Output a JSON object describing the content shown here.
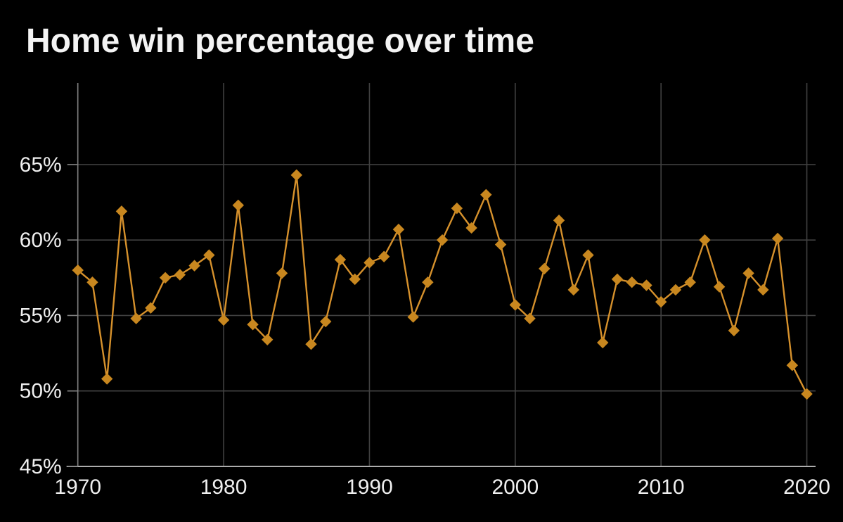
{
  "page": {
    "background": "#000000"
  },
  "chart": {
    "title": "Home win percentage over time"
  },
  "chart_data": {
    "type": "line",
    "title": "Home win percentage over time",
    "series_name": "Home win percentage",
    "x": [
      1970,
      1971,
      1972,
      1973,
      1974,
      1975,
      1976,
      1977,
      1978,
      1979,
      1980,
      1981,
      1982,
      1983,
      1984,
      1985,
      1986,
      1987,
      1988,
      1989,
      1990,
      1991,
      1992,
      1993,
      1994,
      1995,
      1996,
      1997,
      1998,
      1999,
      2000,
      2001,
      2002,
      2003,
      2004,
      2005,
      2006,
      2007,
      2008,
      2009,
      2010,
      2011,
      2012,
      2013,
      2014,
      2015,
      2016,
      2017,
      2018,
      2019,
      2020
    ],
    "values": [
      58.0,
      57.2,
      50.8,
      61.9,
      54.8,
      55.5,
      57.5,
      57.7,
      58.3,
      59.0,
      54.7,
      62.3,
      54.4,
      53.4,
      57.8,
      64.3,
      53.1,
      54.6,
      58.7,
      57.4,
      58.5,
      58.9,
      60.7,
      54.9,
      57.2,
      60.0,
      62.1,
      60.8,
      63.0,
      59.7,
      55.7,
      54.8,
      58.1,
      61.3,
      56.7,
      59.0,
      53.2,
      57.4,
      57.2,
      57.0,
      55.9,
      56.7,
      57.2,
      60.0,
      56.9,
      54.0,
      57.8,
      56.7,
      60.1,
      51.7,
      49.8
    ],
    "xlabel": "",
    "ylabel": "",
    "xlim": [
      1970,
      2020.6
    ],
    "ylim": [
      45,
      70.4
    ],
    "xticks": [
      {
        "value": 1970,
        "label": "1970"
      },
      {
        "value": 1980,
        "label": "1980"
      },
      {
        "value": 1990,
        "label": "1990"
      },
      {
        "value": 2000,
        "label": "2000"
      },
      {
        "value": 2010,
        "label": "2010"
      },
      {
        "value": 2020,
        "label": "2020"
      }
    ],
    "yticks": [
      {
        "value": 45,
        "label": "45%"
      },
      {
        "value": 50,
        "label": "50%"
      },
      {
        "value": 55,
        "label": "55%"
      },
      {
        "value": 60,
        "label": "60%"
      },
      {
        "value": 65,
        "label": "65%"
      }
    ],
    "grid": true,
    "legend": "none",
    "marker": "diamond",
    "colors": {
      "line": "#D6912C",
      "marker": "#C8871F",
      "grid": "#414141",
      "axis": "#ADADAD",
      "spine": "#808080",
      "text": "#EFEFEF",
      "title": "#F4F4F4",
      "background": "#000000"
    }
  }
}
